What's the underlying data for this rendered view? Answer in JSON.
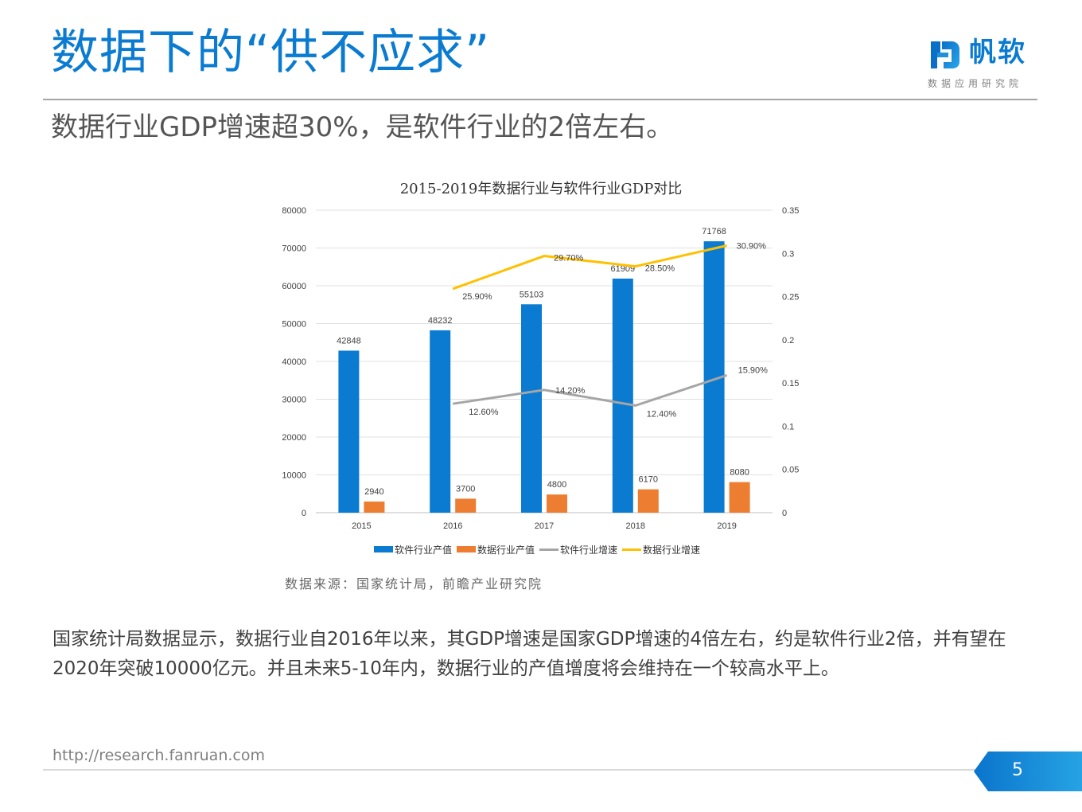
{
  "header": {
    "title": "数据下的“供不应求”",
    "subtitle": "数据行业GDP增速超30%，是软件行业的2倍左右。"
  },
  "logo": {
    "name": "帆软",
    "tagline": "数据应用研究院",
    "brand_color": "#0a7bd1"
  },
  "chart": {
    "source": "数据来源：国家统计局，前瞻产业研究院"
  },
  "chart_data": {
    "type": "bar",
    "title": "2015-2019年数据行业与软件行业GDP对比",
    "categories": [
      "2015",
      "2016",
      "2017",
      "2018",
      "2019"
    ],
    "series": [
      {
        "name": "软件行业产值",
        "type": "bar",
        "axis": "left",
        "color": "#0a7bd1",
        "values": [
          42848,
          48232,
          55103,
          61909,
          71768
        ],
        "labels": [
          "42848",
          "48232",
          "55103",
          "61909",
          "71768"
        ]
      },
      {
        "name": "数据行业产值",
        "type": "bar",
        "axis": "left",
        "color": "#ed7d31",
        "values": [
          2940,
          3700,
          4800,
          6170,
          8080
        ],
        "labels": [
          "2940",
          "3700",
          "4800",
          "6170",
          "8080"
        ]
      },
      {
        "name": "软件行业增速",
        "type": "line",
        "axis": "right",
        "color": "#a5a5a5",
        "values": [
          null,
          0.126,
          0.142,
          0.124,
          0.159
        ],
        "labels": [
          "",
          "12.60%",
          "14.20%",
          "12.40%",
          "15.90%"
        ]
      },
      {
        "name": "数据行业增速",
        "type": "line",
        "axis": "right",
        "color": "#ffc000",
        "values": [
          null,
          0.259,
          0.297,
          0.285,
          0.309
        ],
        "labels": [
          "",
          "25.90%",
          "29.70%",
          "28.50%",
          "30.90%"
        ]
      }
    ],
    "left_axis": {
      "min": 0,
      "max": 80000,
      "ticks": [
        "0",
        "10000",
        "20000",
        "30000",
        "40000",
        "50000",
        "60000",
        "70000",
        "80000"
      ]
    },
    "right_axis": {
      "min": 0,
      "max": 0.35,
      "ticks": [
        "0",
        "0.05",
        "0.1",
        "0.15",
        "0.2",
        "0.25",
        "0.3",
        "0.35"
      ]
    },
    "xlabel": "",
    "ylabel": "",
    "grid": true,
    "legend_position": "bottom"
  },
  "body": {
    "text": "国家统计局数据显示，数据行业自2016年以来，其GDP增速是国家GDP增速的4倍左右，约是软件行业2倍，并有望在2020年突破10000亿元。并且未来5-10年内，数据行业的产值增度将会维持在一个较高水平上。"
  },
  "footer": {
    "url": "http://research.fanruan.com",
    "page_number": "5"
  }
}
